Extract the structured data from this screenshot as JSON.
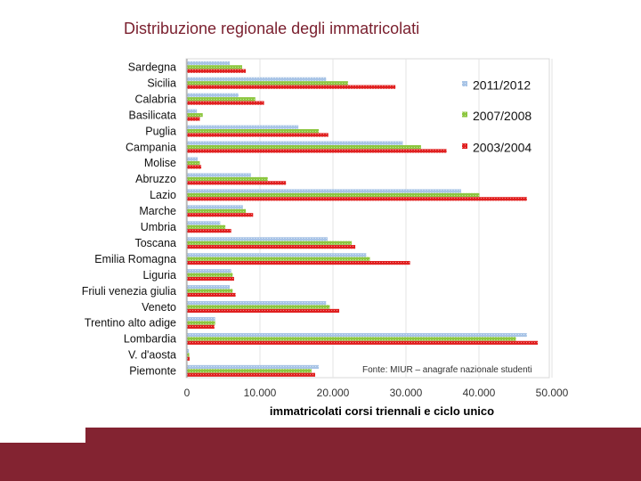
{
  "slide": {
    "title": "Distribuzione regionale degli immatricolati"
  },
  "colors": {
    "title": "#7a1f2e",
    "footer": "#832331",
    "series_2011": "#a8c4e6",
    "series_2007": "#8cc63f",
    "series_2003": "#e02020"
  },
  "chart_data": {
    "type": "bar",
    "orientation": "horizontal",
    "categories": [
      "Sardegna",
      "Sicilia",
      "Calabria",
      "Basilicata",
      "Puglia",
      "Campania",
      "Molise",
      "Abruzzo",
      "Lazio",
      "Marche",
      "Umbria",
      "Toscana",
      "Emilia Romagna",
      "Liguria",
      "Friuli venezia giulia",
      "Veneto",
      "Trentino alto adige",
      "Lombardia",
      "V. d'aosta",
      "Piemonte"
    ],
    "series": [
      {
        "name": "2011/2012",
        "color": "#a8c4e6",
        "values": [
          5800,
          19000,
          7000,
          1300,
          15200,
          29500,
          1400,
          8700,
          37500,
          7600,
          4500,
          19200,
          24500,
          6000,
          5800,
          19000,
          3800,
          46500,
          200,
          18000
        ]
      },
      {
        "name": "2007/2008",
        "color": "#8cc63f",
        "values": [
          7500,
          22000,
          9300,
          2100,
          18000,
          32000,
          1700,
          11000,
          40000,
          8000,
          5200,
          22500,
          25000,
          6200,
          6200,
          19500,
          3800,
          45000,
          250,
          17000
        ]
      },
      {
        "name": "2003/2004",
        "color": "#e02020",
        "values": [
          8000,
          28500,
          10500,
          1700,
          19300,
          35500,
          1900,
          13500,
          46500,
          9000,
          6000,
          23000,
          30500,
          6400,
          6600,
          20800,
          3700,
          48000,
          300,
          17500
        ]
      }
    ],
    "xlabel": "immatricolati corsi triennali e ciclo unico",
    "xticks": [
      "0",
      "10.000",
      "20.000",
      "30.000",
      "40.000",
      "50.000"
    ],
    "xlim": [
      0,
      50000
    ],
    "grid": true,
    "legend_position": "top-right",
    "annotation": "Fonte: MIUR – anagrafe nazionale studenti"
  }
}
